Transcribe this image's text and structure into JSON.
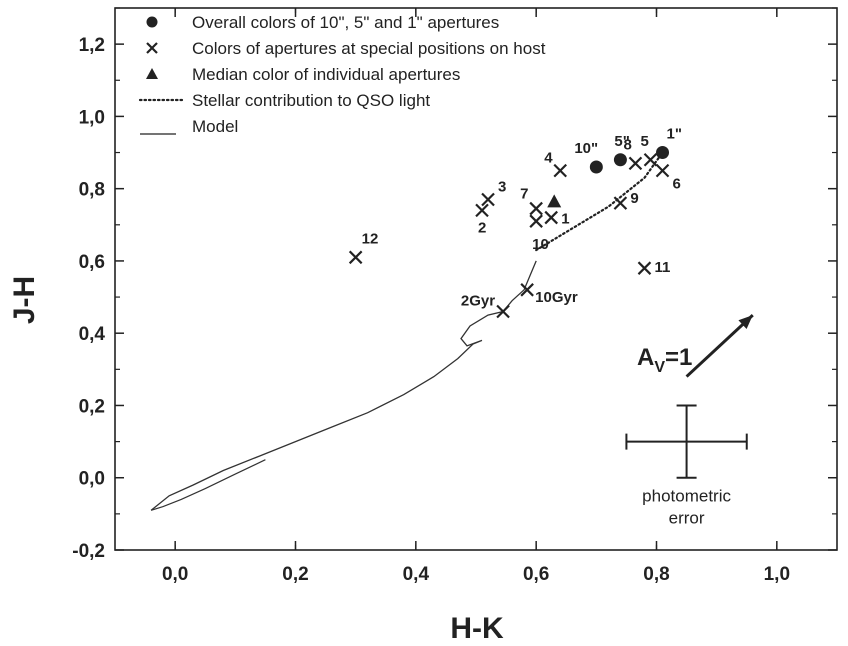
{
  "chart_data": {
    "type": "scatter",
    "xlabel": "H-K",
    "ylabel": "J-H",
    "xlim": [
      -0.1,
      1.1
    ],
    "ylim": [
      -0.2,
      1.3
    ],
    "x_ticks": [
      "0,0",
      "0,2",
      "0,4",
      "0,6",
      "0,8",
      "1,0"
    ],
    "x_tick_values": [
      0.0,
      0.2,
      0.4,
      0.6,
      0.8,
      1.0
    ],
    "y_ticks": [
      "-0,2",
      "0,0",
      "0,2",
      "0,4",
      "0,6",
      "0,8",
      "1,0",
      "1,2"
    ],
    "y_tick_values": [
      -0.2,
      0.0,
      0.2,
      0.4,
      0.6,
      0.8,
      1.0,
      1.2
    ],
    "legend": {
      "placement": "top-left",
      "entries": [
        {
          "marker": "circle",
          "label": "Overall colors of 10\", 5\" and 1\" apertures"
        },
        {
          "marker": "cross",
          "label": "Colors of apertures at special positions on host"
        },
        {
          "marker": "triangle",
          "label": "Median color of individual apertures"
        },
        {
          "marker": "dotted",
          "label": "Stellar contribution to QSO light"
        },
        {
          "marker": "line",
          "label": "Model"
        }
      ]
    },
    "overall_apertures": [
      {
        "label": "10\"",
        "x": 0.7,
        "y": 0.86
      },
      {
        "label": "5\"",
        "x": 0.74,
        "y": 0.88
      },
      {
        "label": "1\"",
        "x": 0.81,
        "y": 0.9
      }
    ],
    "special_positions": [
      {
        "label": "1",
        "x": 0.625,
        "y": 0.72
      },
      {
        "label": "2",
        "x": 0.51,
        "y": 0.74
      },
      {
        "label": "3",
        "x": 0.52,
        "y": 0.77
      },
      {
        "label": "4",
        "x": 0.64,
        "y": 0.85
      },
      {
        "label": "5",
        "x": 0.79,
        "y": 0.88
      },
      {
        "label": "6",
        "x": 0.81,
        "y": 0.85
      },
      {
        "label": "7",
        "x": 0.6,
        "y": 0.745
      },
      {
        "label": "8",
        "x": 0.765,
        "y": 0.87
      },
      {
        "label": "9",
        "x": 0.74,
        "y": 0.76
      },
      {
        "label": "10",
        "x": 0.6,
        "y": 0.71
      },
      {
        "label": "11",
        "x": 0.78,
        "y": 0.58
      },
      {
        "label": "12",
        "x": 0.3,
        "y": 0.61
      }
    ],
    "median_individual": {
      "x": 0.63,
      "y": 0.765
    },
    "model_age_markers": [
      {
        "label": "2Gyr",
        "x": 0.545,
        "y": 0.46
      },
      {
        "label": "10Gyr",
        "x": 0.585,
        "y": 0.52
      }
    ],
    "stellar_contribution": {
      "x": [
        0.6,
        0.66,
        0.72,
        0.78,
        0.81
      ],
      "y": [
        0.63,
        0.69,
        0.75,
        0.83,
        0.9
      ]
    },
    "model_track": {
      "x": [
        -0.04,
        -0.01,
        0.03,
        0.08,
        0.14,
        0.2,
        0.26,
        0.32,
        0.38,
        0.43,
        0.47,
        0.495,
        0.51,
        0.485,
        0.475,
        0.49,
        0.52,
        0.545,
        0.56,
        0.58,
        0.59,
        0.6
      ],
      "y": [
        -0.09,
        -0.05,
        -0.02,
        0.02,
        0.06,
        0.1,
        0.14,
        0.18,
        0.23,
        0.28,
        0.33,
        0.37,
        0.38,
        0.365,
        0.385,
        0.42,
        0.45,
        0.46,
        0.49,
        0.52,
        0.56,
        0.6
      ]
    },
    "model_track_lower": {
      "x": [
        -0.04,
        -0.02,
        0.01,
        0.05,
        0.1,
        0.15
      ],
      "y": [
        -0.09,
        -0.08,
        -0.06,
        -0.03,
        0.01,
        0.05
      ]
    },
    "reddening_vector": {
      "label": "A",
      "subscript": "V",
      "suffix": "=1",
      "x": [
        0.85,
        0.96
      ],
      "y": [
        0.28,
        0.45
      ]
    },
    "photometric_error": {
      "label_line1": "photometric",
      "label_line2": "error",
      "x": 0.85,
      "y": 0.1,
      "dx": 0.1,
      "dy": 0.1
    }
  }
}
